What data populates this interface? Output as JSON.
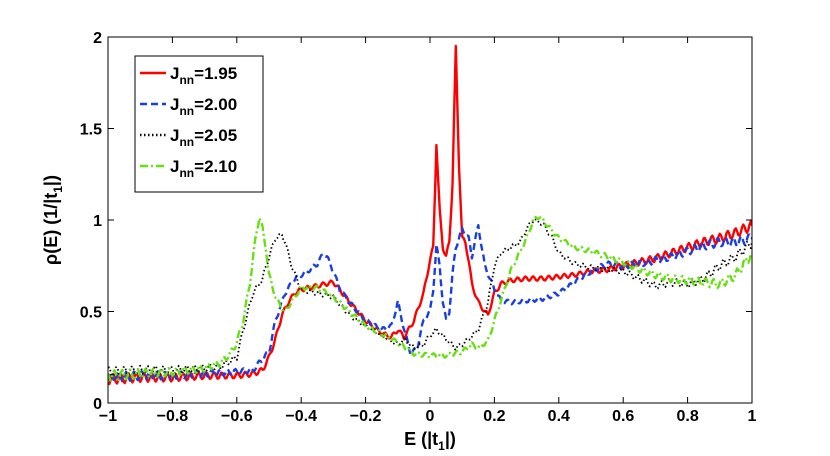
{
  "chart_data": {
    "type": "line",
    "title": "",
    "xlabel": "E (|t",
    "xlabel_sub": "1",
    "xlabel_tail": "|)",
    "ylabel": "ρ(E) (1/|t",
    "ylabel_sub": "1",
    "ylabel_tail": "|)",
    "xlim": [
      -1,
      1
    ],
    "ylim": [
      0,
      2
    ],
    "xticks": [
      -1,
      -0.8,
      -0.6,
      -0.4,
      -0.2,
      0,
      0.2,
      0.4,
      0.6,
      0.8,
      1
    ],
    "xtick_labels": [
      "−1",
      "−0.8",
      "−0.6",
      "−0.4",
      "−0.2",
      "0",
      "0.2",
      "0.4",
      "0.6",
      "0.8",
      "1"
    ],
    "yticks": [
      0,
      0.5,
      1,
      1.5,
      2
    ],
    "ytick_labels": [
      "0",
      "0.5",
      "1",
      "1.5",
      "2"
    ],
    "grid": false,
    "legend_position": "top-left",
    "series": [
      {
        "name": "J",
        "name_sub": "nn",
        "name_value": "=1.95",
        "color": "#ff0000",
        "dash": "solid",
        "x": [
          -1.0,
          -0.9,
          -0.8,
          -0.7,
          -0.6,
          -0.55,
          -0.52,
          -0.5,
          -0.48,
          -0.46,
          -0.44,
          -0.42,
          -0.4,
          -0.35,
          -0.3,
          -0.28,
          -0.25,
          -0.2,
          -0.15,
          -0.12,
          -0.1,
          -0.08,
          -0.05,
          -0.02,
          0.0,
          0.01,
          0.02,
          0.03,
          0.04,
          0.05,
          0.06,
          0.07,
          0.08,
          0.09,
          0.1,
          0.11,
          0.12,
          0.13,
          0.15,
          0.17,
          0.18,
          0.2,
          0.22,
          0.25,
          0.3,
          0.35,
          0.4,
          0.45,
          0.5,
          0.55,
          0.6,
          0.65,
          0.7,
          0.75,
          0.8,
          0.85,
          0.9,
          0.95,
          1.0
        ],
        "y": [
          0.13,
          0.14,
          0.14,
          0.15,
          0.15,
          0.16,
          0.18,
          0.25,
          0.35,
          0.48,
          0.55,
          0.6,
          0.62,
          0.64,
          0.66,
          0.62,
          0.55,
          0.45,
          0.38,
          0.36,
          0.4,
          0.36,
          0.45,
          0.6,
          0.78,
          0.85,
          1.42,
          1.05,
          0.85,
          0.8,
          0.88,
          1.2,
          1.94,
          1.3,
          0.9,
          0.88,
          0.78,
          0.65,
          0.55,
          0.5,
          0.48,
          0.6,
          0.65,
          0.67,
          0.68,
          0.68,
          0.69,
          0.7,
          0.72,
          0.73,
          0.75,
          0.77,
          0.79,
          0.82,
          0.85,
          0.88,
          0.9,
          0.93,
          0.97
        ]
      },
      {
        "name": "J",
        "name_sub": "nn",
        "name_value": "=2.00",
        "color": "#1a3fe0",
        "dash": "dashed",
        "x": [
          -1.0,
          -0.9,
          -0.8,
          -0.7,
          -0.6,
          -0.55,
          -0.5,
          -0.48,
          -0.45,
          -0.42,
          -0.4,
          -0.38,
          -0.35,
          -0.33,
          -0.32,
          -0.3,
          -0.28,
          -0.25,
          -0.2,
          -0.15,
          -0.12,
          -0.1,
          -0.08,
          -0.06,
          -0.04,
          -0.02,
          0.0,
          0.01,
          0.02,
          0.03,
          0.04,
          0.05,
          0.06,
          0.07,
          0.08,
          0.1,
          0.12,
          0.13,
          0.15,
          0.17,
          0.2,
          0.22,
          0.25,
          0.3,
          0.35,
          0.4,
          0.45,
          0.5,
          0.55,
          0.6,
          0.65,
          0.7,
          0.75,
          0.8,
          0.85,
          0.9,
          0.95,
          1.0
        ],
        "y": [
          0.14,
          0.15,
          0.15,
          0.16,
          0.17,
          0.18,
          0.28,
          0.45,
          0.6,
          0.68,
          0.7,
          0.72,
          0.76,
          0.82,
          0.8,
          0.72,
          0.62,
          0.55,
          0.45,
          0.4,
          0.42,
          0.55,
          0.4,
          0.27,
          0.3,
          0.45,
          0.5,
          0.62,
          0.86,
          0.75,
          0.55,
          0.45,
          0.5,
          0.7,
          0.85,
          0.95,
          0.9,
          0.8,
          0.97,
          0.75,
          0.62,
          0.56,
          0.55,
          0.56,
          0.57,
          0.6,
          0.66,
          0.72,
          0.76,
          0.75,
          0.76,
          0.78,
          0.8,
          0.83,
          0.86,
          0.88,
          0.88,
          0.9
        ]
      },
      {
        "name": "J",
        "name_sub": "nn",
        "name_value": "=2.05",
        "color": "#000000",
        "dash": "dotted",
        "x": [
          -1.0,
          -0.9,
          -0.8,
          -0.7,
          -0.65,
          -0.6,
          -0.58,
          -0.55,
          -0.52,
          -0.5,
          -0.48,
          -0.46,
          -0.45,
          -0.43,
          -0.4,
          -0.35,
          -0.3,
          -0.25,
          -0.2,
          -0.15,
          -0.12,
          -0.1,
          -0.08,
          -0.05,
          -0.02,
          0.0,
          0.02,
          0.05,
          0.08,
          0.1,
          0.12,
          0.15,
          0.18,
          0.2,
          0.22,
          0.25,
          0.28,
          0.3,
          0.32,
          0.35,
          0.38,
          0.4,
          0.45,
          0.5,
          0.55,
          0.6,
          0.65,
          0.7,
          0.75,
          0.8,
          0.85,
          0.9,
          0.95,
          1.0
        ],
        "y": [
          0.17,
          0.18,
          0.18,
          0.19,
          0.2,
          0.25,
          0.4,
          0.6,
          0.68,
          0.8,
          0.9,
          0.92,
          0.88,
          0.75,
          0.62,
          0.6,
          0.58,
          0.48,
          0.42,
          0.37,
          0.34,
          0.32,
          0.35,
          0.3,
          0.32,
          0.37,
          0.4,
          0.35,
          0.3,
          0.32,
          0.35,
          0.4,
          0.55,
          0.75,
          0.82,
          0.85,
          0.88,
          0.95,
          1.0,
          0.98,
          0.9,
          0.82,
          0.76,
          0.74,
          0.73,
          0.72,
          0.68,
          0.64,
          0.66,
          0.65,
          0.68,
          0.75,
          0.8,
          0.88
        ]
      },
      {
        "name": "J",
        "name_sub": "nn",
        "name_value": "=2.10",
        "color": "#66e010",
        "dash": "dashdot",
        "x": [
          -1.0,
          -0.9,
          -0.8,
          -0.7,
          -0.65,
          -0.62,
          -0.6,
          -0.58,
          -0.56,
          -0.54,
          -0.53,
          -0.52,
          -0.51,
          -0.5,
          -0.48,
          -0.46,
          -0.45,
          -0.42,
          -0.4,
          -0.35,
          -0.3,
          -0.25,
          -0.2,
          -0.15,
          -0.1,
          -0.05,
          0.0,
          0.05,
          0.1,
          0.13,
          0.15,
          0.18,
          0.2,
          0.25,
          0.3,
          0.32,
          0.34,
          0.36,
          0.4,
          0.45,
          0.5,
          0.55,
          0.6,
          0.65,
          0.7,
          0.75,
          0.8,
          0.85,
          0.9,
          0.95,
          1.0
        ],
        "y": [
          0.15,
          0.16,
          0.17,
          0.19,
          0.22,
          0.27,
          0.33,
          0.45,
          0.65,
          0.92,
          1.02,
          0.95,
          0.85,
          0.7,
          0.58,
          0.52,
          0.5,
          0.58,
          0.63,
          0.63,
          0.58,
          0.5,
          0.42,
          0.38,
          0.33,
          0.27,
          0.26,
          0.26,
          0.28,
          0.32,
          0.3,
          0.34,
          0.45,
          0.72,
          0.9,
          1.0,
          1.02,
          0.98,
          0.9,
          0.85,
          0.83,
          0.8,
          0.77,
          0.73,
          0.7,
          0.68,
          0.67,
          0.66,
          0.65,
          0.7,
          0.82
        ]
      }
    ]
  }
}
